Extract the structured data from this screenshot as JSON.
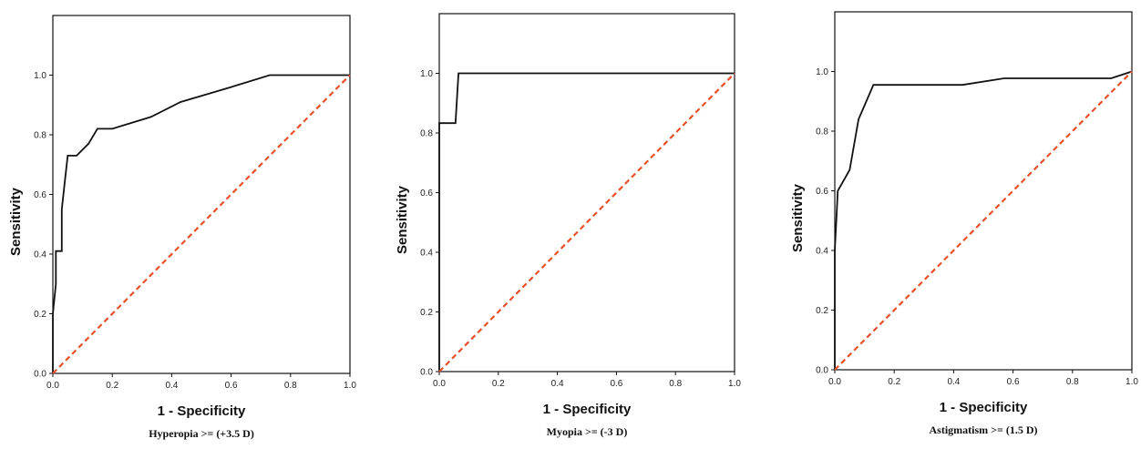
{
  "chart_data": [
    {
      "type": "line",
      "xlabel": "1 - Specificity",
      "ylabel": "Sensitivity",
      "caption": "Hyperopia >= (+3.5 D)",
      "xlim": [
        0,
        1
      ],
      "ylim": [
        0,
        1.2
      ],
      "xticks": [
        "0.0",
        "0.2",
        "0.4",
        "0.6",
        "0.8",
        "1.0"
      ],
      "yticks": [
        "0.0",
        "0.2",
        "0.4",
        "0.6",
        "0.8",
        "1.0"
      ],
      "series": [
        {
          "color": "#111111",
          "points": [
            [
              0,
              0
            ],
            [
              0,
              0.2
            ],
            [
              0.01,
              0.3
            ],
            [
              0.01,
              0.41
            ],
            [
              0.03,
              0.41
            ],
            [
              0.03,
              0.55
            ],
            [
              0.04,
              0.64
            ],
            [
              0.05,
              0.73
            ],
            [
              0.08,
              0.73
            ],
            [
              0.12,
              0.77
            ],
            [
              0.15,
              0.82
            ],
            [
              0.2,
              0.82
            ],
            [
              0.33,
              0.86
            ],
            [
              0.43,
              0.91
            ],
            [
              0.6,
              0.96
            ],
            [
              0.73,
              1.0
            ],
            [
              1.0,
              1.0
            ]
          ]
        },
        {
          "color": "#e8502a",
          "dashed": true,
          "points": [
            [
              0,
              0
            ],
            [
              1,
              1
            ]
          ]
        }
      ],
      "grid": false
    },
    {
      "type": "line",
      "xlabel": "1 - Specificity",
      "ylabel": "Sensitivity",
      "caption": "Myopia >= (-3 D)",
      "xlim": [
        0,
        1
      ],
      "ylim": [
        0,
        1.2
      ],
      "xticks": [
        "0.0",
        "0.2",
        "0.4",
        "0.6",
        "0.8",
        "1.0"
      ],
      "yticks": [
        "0.0",
        "0.2",
        "0.4",
        "0.6",
        "0.8",
        "1.0"
      ],
      "series": [
        {
          "color": "#111111",
          "points": [
            [
              0,
              0
            ],
            [
              0,
              0.833
            ],
            [
              0.055,
              0.833
            ],
            [
              0.065,
              1.0
            ],
            [
              1.0,
              1.0
            ]
          ]
        },
        {
          "color": "#e8502a",
          "dashed": true,
          "points": [
            [
              0,
              0
            ],
            [
              1,
              1
            ]
          ]
        }
      ],
      "grid": false
    },
    {
      "type": "line",
      "xlabel": "1 - Specificity",
      "ylabel": "Sensitivity",
      "caption": "Astigmatism >= (1.5 D)",
      "xlim": [
        0,
        1
      ],
      "ylim": [
        0,
        1.2
      ],
      "xticks": [
        "0.0",
        "0.2",
        "0.4",
        "0.6",
        "0.8",
        "1.0"
      ],
      "yticks": [
        "0.0",
        "0.2",
        "0.4",
        "0.6",
        "0.8",
        "1.0"
      ],
      "series": [
        {
          "color": "#111111",
          "points": [
            [
              0,
              0
            ],
            [
              0,
              0.4
            ],
            [
              0.01,
              0.6
            ],
            [
              0.05,
              0.67
            ],
            [
              0.08,
              0.84
            ],
            [
              0.13,
              0.955
            ],
            [
              0.43,
              0.955
            ],
            [
              0.57,
              0.977
            ],
            [
              0.93,
              0.977
            ],
            [
              1.0,
              1.0
            ]
          ]
        },
        {
          "color": "#e8502a",
          "dashed": true,
          "points": [
            [
              0,
              0
            ],
            [
              1,
              1
            ]
          ]
        }
      ],
      "grid": false
    }
  ]
}
